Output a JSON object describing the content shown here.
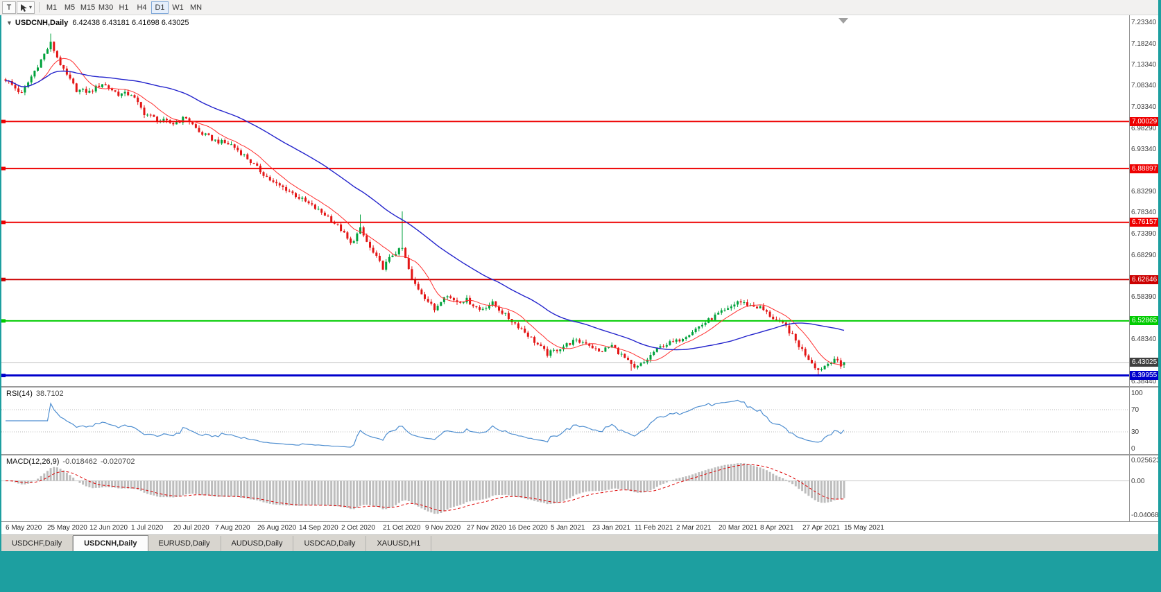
{
  "toolbar": {
    "button_t": "T",
    "dropdown_caret": "▾",
    "timeframes": [
      "M1",
      "M5",
      "M15",
      "M30",
      "H1",
      "H4",
      "D1",
      "W1",
      "MN"
    ],
    "active_timeframe": "D1"
  },
  "main_chart": {
    "collapse_icon": "▼",
    "symbol": "USDCNH,Daily",
    "ohlc_text": "6.42438 6.43181 6.41698 6.43025"
  },
  "rsi": {
    "label": "RSI(14)",
    "value": "38.7102"
  },
  "macd": {
    "label": "MACD(12,26,9)",
    "value_main": "-0.018462",
    "value_signal": "-0.020702"
  },
  "tabs": [
    "USDCHF,Daily",
    "USDCNH,Daily",
    "EURUSD,Daily",
    "AUDUSD,Daily",
    "USDCAD,Daily",
    "XAUUSD,H1"
  ],
  "active_tab": "USDCNH,Daily",
  "chart_data": {
    "type": "candlestick",
    "symbol": "USDCNH",
    "timeframe": "Daily",
    "last_ohlc": {
      "open": 6.42438,
      "high": 6.43181,
      "low": 6.41698,
      "close": 6.43025
    },
    "x_labels": [
      "6 May 2020",
      "25 May 2020",
      "12 Jun 2020",
      "1 Jul 2020",
      "20 Jul 2020",
      "7 Aug 2020",
      "26 Aug 2020",
      "14 Sep 2020",
      "2 Oct 2020",
      "21 Oct 2020",
      "9 Nov 2020",
      "27 Nov 2020",
      "16 Dec 2020",
      "5 Jan 2021",
      "23 Jan 2021",
      "11 Feb 2021",
      "2 Mar 2021",
      "20 Mar 2021",
      "8 Apr 2021",
      "27 Apr 2021",
      "15 May 2021"
    ],
    "candles_per_label": 13,
    "candle_count": 261,
    "y_axis_labels": [
      "7.23340",
      "7.18240",
      "7.13340",
      "7.08340",
      "7.03340",
      "6.98290",
      "6.93340",
      "6.83290",
      "6.78340",
      "6.73390",
      "6.68290",
      "6.58390",
      "6.48340",
      "6.38440"
    ],
    "horizontal_lines": [
      {
        "price": 7.00029,
        "label": "7.00029",
        "color": "#ee0000",
        "width": 2
      },
      {
        "price": 6.88897,
        "label": "6.88897",
        "color": "#ee0000",
        "width": 2
      },
      {
        "price": 6.76157,
        "label": "6.76157",
        "color": "#ee0000",
        "width": 2
      },
      {
        "price": 6.62646,
        "label": "6.62646",
        "color": "#cc0000",
        "width": 2
      },
      {
        "price": 6.52865,
        "label": "6.52865",
        "color": "#00cc00",
        "width": 2
      },
      {
        "price": 6.39955,
        "label": "6.39955",
        "color": "#0000cc",
        "width": 3
      }
    ],
    "current_price": {
      "value": 6.43025,
      "label": "6.43025",
      "box_color": "#3f3f3f",
      "line_color": "#bfbfbf"
    },
    "moving_averages": [
      {
        "period": 10,
        "color": "#ff3030",
        "width": 1
      },
      {
        "period": 45,
        "color": "#2323cc",
        "width": 1.4
      }
    ],
    "candle_up_color": "#00a23c",
    "candle_down_color": "#e31515",
    "anchors": [
      [
        0,
        7.1
      ],
      [
        5,
        7.065
      ],
      [
        9,
        7.12
      ],
      [
        14,
        7.185
      ],
      [
        18,
        7.12
      ],
      [
        22,
        7.075
      ],
      [
        26,
        7.07
      ],
      [
        30,
        7.09
      ],
      [
        35,
        7.065
      ],
      [
        39,
        7.065
      ],
      [
        43,
        7.02
      ],
      [
        47,
        7.005
      ],
      [
        52,
        6.995
      ],
      [
        56,
        7.01
      ],
      [
        60,
        6.975
      ],
      [
        65,
        6.955
      ],
      [
        70,
        6.945
      ],
      [
        74,
        6.92
      ],
      [
        78,
        6.89
      ],
      [
        83,
        6.855
      ],
      [
        87,
        6.84
      ],
      [
        91,
        6.82
      ],
      [
        95,
        6.8
      ],
      [
        100,
        6.775
      ],
      [
        104,
        6.745
      ],
      [
        107,
        6.71
      ],
      [
        110,
        6.745
      ],
      [
        113,
        6.7
      ],
      [
        117,
        6.655
      ],
      [
        120,
        6.685
      ],
      [
        123,
        6.7
      ],
      [
        126,
        6.625
      ],
      [
        130,
        6.585
      ],
      [
        133,
        6.555
      ],
      [
        136,
        6.59
      ],
      [
        140,
        6.575
      ],
      [
        143,
        6.578
      ],
      [
        147,
        6.555
      ],
      [
        151,
        6.57
      ],
      [
        156,
        6.535
      ],
      [
        160,
        6.51
      ],
      [
        164,
        6.48
      ],
      [
        168,
        6.45
      ],
      [
        172,
        6.465
      ],
      [
        176,
        6.48
      ],
      [
        180,
        6.478
      ],
      [
        184,
        6.455
      ],
      [
        188,
        6.47
      ],
      [
        192,
        6.44
      ],
      [
        195,
        6.415
      ],
      [
        198,
        6.43
      ],
      [
        201,
        6.455
      ],
      [
        204,
        6.472
      ],
      [
        208,
        6.48
      ],
      [
        212,
        6.5
      ],
      [
        216,
        6.52
      ],
      [
        221,
        6.545
      ],
      [
        224,
        6.555
      ],
      [
        227,
        6.575
      ],
      [
        231,
        6.565
      ],
      [
        234,
        6.56
      ],
      [
        238,
        6.535
      ],
      [
        242,
        6.515
      ],
      [
        246,
        6.47
      ],
      [
        249,
        6.44
      ],
      [
        252,
        6.412
      ],
      [
        255,
        6.428
      ],
      [
        257,
        6.44
      ],
      [
        259,
        6.42
      ],
      [
        260,
        6.43
      ]
    ],
    "noise_amp": 0.0055,
    "wick_amp": 0.007,
    "spikes": [
      {
        "index": 14,
        "high_extra": 0.015
      },
      {
        "index": 110,
        "high_extra": 0.03
      },
      {
        "index": 123,
        "high_extra": 0.08
      },
      {
        "index": 194,
        "low_extra": 0.013
      },
      {
        "index": 252,
        "low_extra": 0.01
      }
    ],
    "rsi": {
      "period": 14,
      "levels": [
        100,
        70,
        30,
        0
      ],
      "line_color": "#4e8ed0",
      "last_value": 38.7102
    },
    "macd": {
      "fast": 12,
      "slow": 26,
      "signal": 9,
      "hist_color": "#bdbdbd",
      "signal_color": "#dd0000",
      "axis_labels": [
        "0.025623",
        "0.00",
        "-0.040687"
      ],
      "last_main": -0.018462,
      "last_signal": -0.020702
    }
  }
}
